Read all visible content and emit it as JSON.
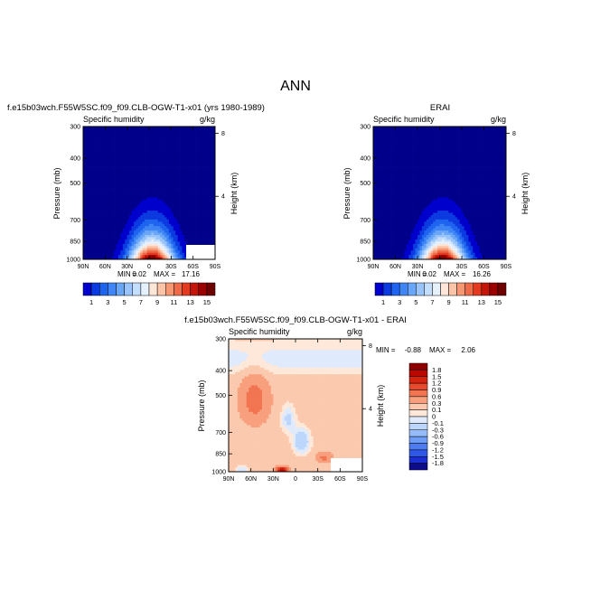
{
  "page_title": "ANN",
  "palette_seq": [
    "#00008b",
    "#0000cd",
    "#0a3ae0",
    "#1e64ee",
    "#3f85f5",
    "#6aa6f8",
    "#98c4fb",
    "#c3ddfd",
    "#e6f1fe",
    "#fde5d8",
    "#fbc3a8",
    "#f69774",
    "#ef6a48",
    "#e23b22",
    "#c41508",
    "#9b0000",
    "#6e0000"
  ],
  "palette_div": [
    "#0b0b8c",
    "#1b2fd0",
    "#2f58e8",
    "#4d7cf2",
    "#6f9df6",
    "#95bcf9",
    "#bdd6fc",
    "#dfeafd",
    "#fde8d9",
    "#fbc9ae",
    "#f8a07e",
    "#f27552",
    "#e94a2e",
    "#d4230f",
    "#b80800",
    "#8e0000"
  ],
  "chart_data": [
    {
      "type": "heatmap",
      "panel_title": "f.e15b03wch.F55W5SC.f09_f09.CLB-OGW-T1-x01 (yrs 1980-1989)",
      "variable": "Specific humidity",
      "units": "g/kg",
      "ylabel": "Pressure (mb)",
      "ylabel_right": "Height (km)",
      "x_ticks": [
        "90N",
        "60N",
        "30N",
        "0",
        "30S",
        "60S",
        "90S"
      ],
      "y_ticks": [
        "300",
        "400",
        "500",
        "700",
        "850",
        "1000"
      ],
      "y_ticks_right": [
        "8",
        "4"
      ],
      "x_range": [
        -90,
        90
      ],
      "y_range": [
        1000,
        300
      ],
      "min_label": "MIN =",
      "min_value": "0.02",
      "max_label": "MAX =",
      "max_value": "17.16",
      "min": 0.02,
      "max": 17.16,
      "colorbar_labels": [
        "1",
        "3",
        "5",
        "7",
        "9",
        "11",
        "13",
        "15"
      ]
    },
    {
      "type": "heatmap",
      "panel_title": "ERAI",
      "variable": "Specific humidity",
      "units": "g/kg",
      "ylabel": "Pressure (mb)",
      "ylabel_right": "Height (km)",
      "x_ticks": [
        "90N",
        "60N",
        "30N",
        "0",
        "30S",
        "60S",
        "90S"
      ],
      "y_ticks": [
        "300",
        "400",
        "500",
        "700",
        "850",
        "1000"
      ],
      "y_ticks_right": [
        "8",
        "4"
      ],
      "x_range": [
        -90,
        90
      ],
      "y_range": [
        1000,
        300
      ],
      "min_label": "MIN =",
      "min_value": "0.02",
      "max_label": "MAX =",
      "max_value": "16.26",
      "min": 0.02,
      "max": 16.26,
      "colorbar_labels": [
        "1",
        "3",
        "5",
        "7",
        "9",
        "11",
        "13",
        "15"
      ]
    },
    {
      "type": "heatmap",
      "panel_title": "f.e15b03wch.F55W5SC.f09_f09.CLB-OGW-T1-x01 - ERAI",
      "variable": "Specific humidity",
      "units": "g/kg",
      "ylabel": "Pressure (mb)",
      "ylabel_right": "Height (km)",
      "x_ticks": [
        "90N",
        "60N",
        "30N",
        "0",
        "30S",
        "60S",
        "90S"
      ],
      "y_ticks": [
        "300",
        "400",
        "500",
        "700",
        "850",
        "1000"
      ],
      "y_ticks_right": [
        "8",
        "4"
      ],
      "x_range": [
        -90,
        90
      ],
      "y_range": [
        1000,
        300
      ],
      "min_label": "MIN =",
      "min_value": "-0.88",
      "max_label": "MAX =",
      "max_value": "2.06",
      "min": -0.88,
      "max": 2.06,
      "colorbar_labels": [
        "1.8",
        "1.5",
        "1.2",
        "0.9",
        "0.6",
        "0.3",
        "0.1",
        "0",
        "-0.1",
        "-0.3",
        "-0.6",
        "-0.9",
        "-1.2",
        "-1.5",
        "-1.8"
      ]
    }
  ]
}
